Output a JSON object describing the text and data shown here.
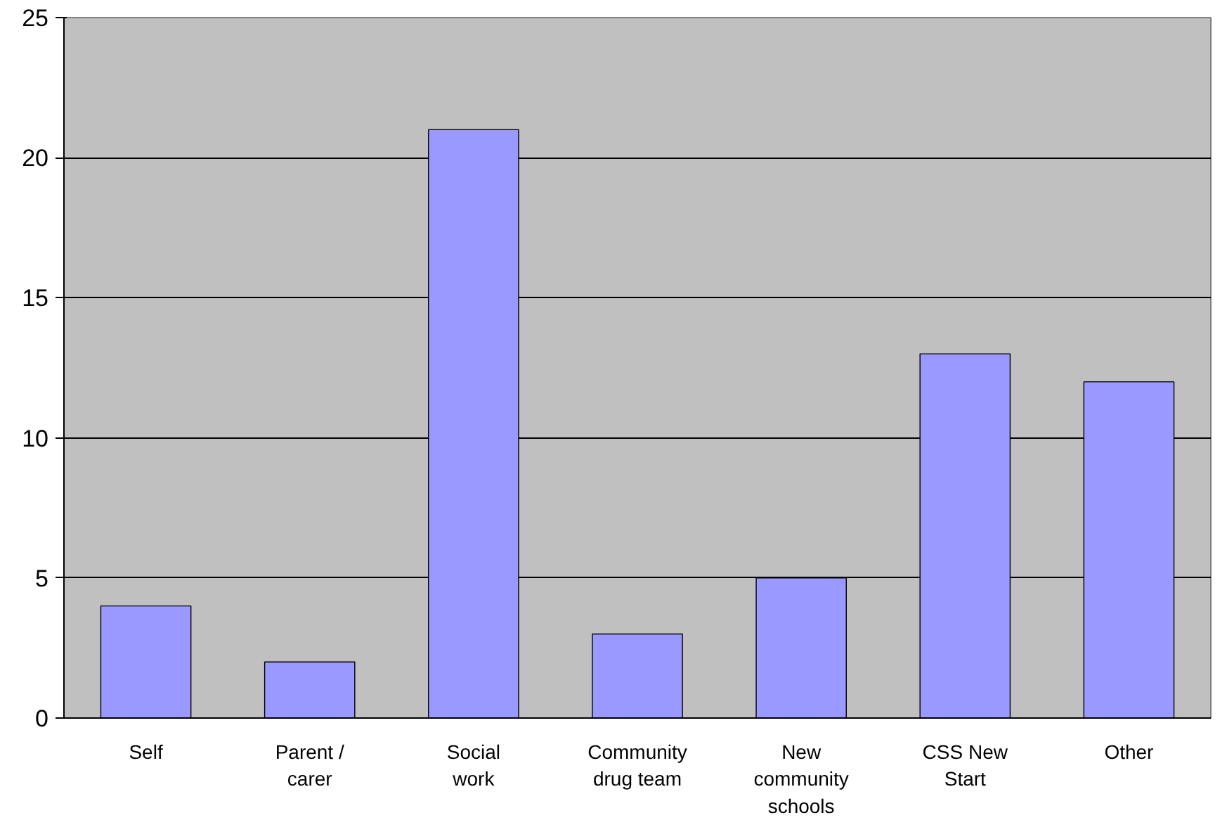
{
  "chart_data": {
    "type": "bar",
    "categories": [
      "Self",
      "Parent / carer",
      "Social work",
      "Community drug team",
      "New community schools",
      "CSS New Start",
      "Other"
    ],
    "values": [
      4,
      2,
      21,
      3,
      5,
      13,
      12
    ],
    "color": "#9999ff",
    "ylim": [
      0,
      25
    ],
    "yticks": [
      0,
      5,
      10,
      15,
      20,
      25
    ],
    "grid": "y"
  }
}
